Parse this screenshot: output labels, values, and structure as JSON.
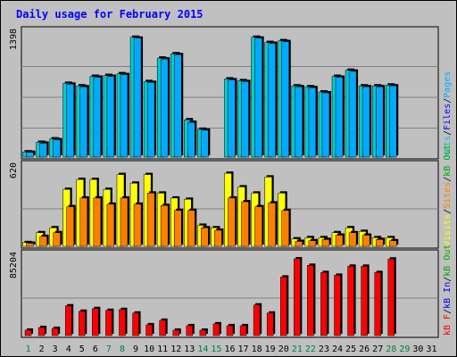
{
  "chart_data": {
    "type": "bar",
    "title": "Daily usage for February 2015",
    "categories": [
      "1",
      "2",
      "3",
      "4",
      "5",
      "6",
      "7",
      "8",
      "9",
      "10",
      "11",
      "12",
      "13",
      "14",
      "15",
      "16",
      "17",
      "18",
      "19",
      "20",
      "21",
      "22",
      "23",
      "24",
      "25",
      "26",
      "27",
      "28",
      "29",
      "30",
      "31"
    ],
    "weekend_days": [
      "1",
      "7",
      "8",
      "14",
      "15",
      "21",
      "22",
      "28",
      "29"
    ],
    "colors": {
      "title": "#0000ff",
      "hits": "#00cccc",
      "files": "#0000ff",
      "pages": "#00aaff",
      "visits": "#ffff00",
      "sites": "#ff8000",
      "kbf": "#ff0000",
      "kbin": "#0000ff",
      "kbout": "#00aa00",
      "weekend_label": "#008040",
      "weekday_label": "#000000"
    },
    "panels": [
      {
        "id": "top",
        "max_label": "1398",
        "ymax": 1398,
        "legend": [
          {
            "text": "Hits",
            "color": "#00cccc"
          },
          {
            "text": "/",
            "color": "#000000"
          },
          {
            "text": "Files",
            "color": "#0000ff"
          },
          {
            "text": "/",
            "color": "#000000"
          },
          {
            "text": "Pages",
            "color": "#00aaff"
          }
        ],
        "series": [
          {
            "name": "Hits",
            "color": "#00cccc",
            "values": [
              60,
              170,
              210,
              850,
              820,
              930,
              940,
              960,
              1380,
              870,
              1140,
              1190,
              430,
              320,
              0,
              900,
              880,
              1380,
              1320,
              1340,
              820,
              810,
              750,
              930,
              1000,
              820,
              820,
              830,
              0,
              0,
              0
            ]
          },
          {
            "name": "Pages",
            "color": "#00aaff",
            "values": [
              55,
              160,
              200,
              840,
              810,
              920,
              930,
              950,
              1370,
              860,
              1130,
              1180,
              400,
              310,
              0,
              890,
              870,
              1370,
              1310,
              1330,
              810,
              800,
              740,
              920,
              990,
              810,
              810,
              820,
              0,
              0,
              0
            ]
          }
        ]
      },
      {
        "id": "middle",
        "max_label": "620",
        "ymax": 620,
        "legend": [
          {
            "text": "Visits",
            "color": "#ffff00"
          },
          {
            "text": "/",
            "color": "#000000"
          },
          {
            "text": "Sites",
            "color": "#ff8000"
          },
          {
            "text": "/",
            "color": "#000000"
          },
          {
            "text": "kB Out",
            "color": "#00aa00"
          }
        ],
        "series": [
          {
            "name": "Visits",
            "color": "#ffff00",
            "values": [
              30,
              110,
              150,
              460,
              540,
              540,
              460,
              580,
              510,
              580,
              430,
              390,
              380,
              170,
              150,
              590,
              480,
              430,
              560,
              430,
              60,
              70,
              70,
              110,
              150,
              120,
              70,
              70,
              0,
              0,
              0
            ]
          },
          {
            "name": "Sites",
            "color": "#ff8000",
            "values": [
              25,
              80,
              110,
              320,
              390,
              390,
              340,
              390,
              340,
              430,
              330,
              290,
              290,
              150,
              130,
              390,
              360,
              320,
              350,
              290,
              40,
              45,
              55,
              90,
              110,
              90,
              55,
              45,
              0,
              0,
              0
            ]
          }
        ]
      },
      {
        "id": "bottom",
        "max_label": "85204",
        "ymax": 85204,
        "legend": [
          {
            "text": "kB F",
            "color": "#ff0000"
          },
          {
            "text": "/",
            "color": "#000000"
          },
          {
            "text": "kB In",
            "color": "#0000ff"
          },
          {
            "text": "/",
            "color": "#000000"
          },
          {
            "text": "kB Out",
            "color": "#00aa00"
          }
        ],
        "series": [
          {
            "name": "kB F",
            "color": "#ff0000",
            "values": [
              6000,
              9000,
              8000,
              33000,
              27000,
              30000,
              28000,
              29000,
              25000,
              12000,
              17000,
              6000,
              11000,
              6000,
              13000,
              11000,
              11000,
              34000,
              25000,
              65000,
              85204,
              78000,
              70000,
              67000,
              77000,
              77000,
              70000,
              85000,
              0,
              0,
              0
            ]
          }
        ]
      }
    ]
  }
}
